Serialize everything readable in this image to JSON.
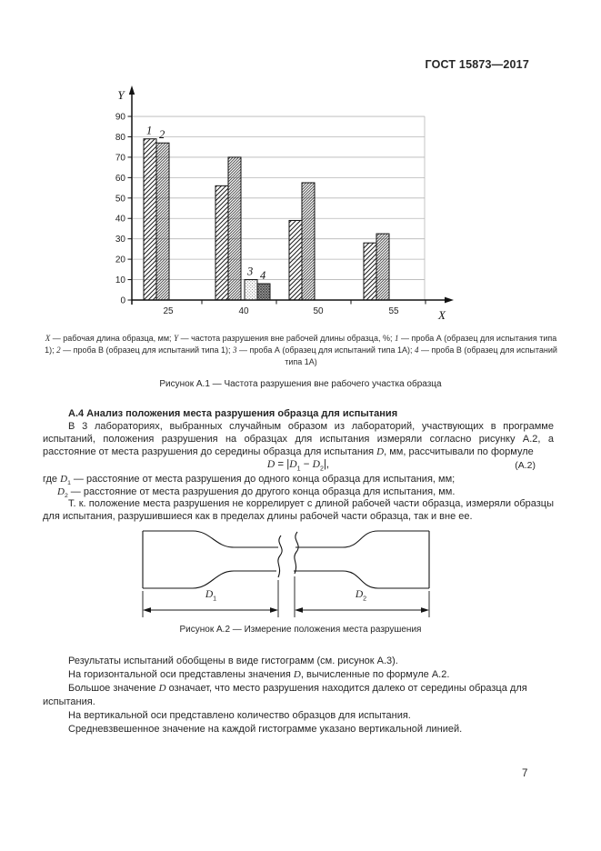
{
  "page": {
    "header": "ГОСТ 15873—2017",
    "page_number": "7"
  },
  "chart_data": {
    "type": "bar",
    "title": "",
    "x_axis_label": "X",
    "y_axis_label": "Y",
    "categories": [
      "25",
      "40",
      "50",
      "55"
    ],
    "y_ticks": [
      0,
      10,
      20,
      30,
      40,
      50,
      60,
      70,
      80,
      90
    ],
    "ylim": [
      0,
      95
    ],
    "grid": true,
    "legend_position": "none",
    "series": [
      {
        "name": "1",
        "pattern": "hatch-wide",
        "values": [
          79,
          56,
          39,
          28
        ]
      },
      {
        "name": "2",
        "pattern": "hatch-dense",
        "values": [
          77,
          70,
          57.5,
          32.5
        ]
      },
      {
        "name": "3",
        "pattern": "dots",
        "values": [
          null,
          10,
          null,
          null
        ]
      },
      {
        "name": "4",
        "pattern": "crosshatch-dark",
        "values": [
          null,
          8,
          null,
          null
        ]
      }
    ],
    "curve_labels": [
      {
        "text": "1",
        "series": 0,
        "category": 0
      },
      {
        "text": "2",
        "series": 1,
        "category": 0
      },
      {
        "text": "3",
        "series": 2,
        "category": 1
      },
      {
        "text": "4",
        "series": 3,
        "category": 1
      }
    ]
  },
  "figure_a1": {
    "legend": "*X* — рабочая длина образца, мм; *Y* — частота разрушения вне рабочей длины образца, %; *1* — проба А (образец для испытания типа 1); *2* — проба В (образец для испытаний типа 1); *3* — проба А (образец для испытаний типа 1А); *4* — проба В (образец для испытаний типа 1А)",
    "caption": "Рисунок А.1 — Частота разрушения вне рабочего участка образца"
  },
  "section_a4": {
    "heading": "А.4  Анализ положения места разрушения образца для испытания",
    "paragraph1": "В 3 лабораториях, выбранных случайным образом из лабораторий, участвующих в программе испытаний, положения разрушения на образцах для испытания измеряли согласно рисунку А.2, а расстояние от места разрушения до середины образца для испытания *D*, мм, рассчитывали по формуле",
    "formula": "*D* = |*D*~1~ − *D*~2~|,",
    "formula_number": "(А.2)",
    "where_items": [
      "где *D*~1~ — расстояние от места разрушения до одного конца образца для испытания, мм;",
      "*D*~2~ — расстояние от места разрушения до другого конца образца для испытания, мм."
    ],
    "paragraph2": "Т. к. положение места разрушения не коррелирует с длиной рабочей части образца, измеряли образцы для испытания, разрушившиеся как в пределах длины рабочей части образца, так и вне ее."
  },
  "figure_a2": {
    "dim1": "*D*~1~",
    "dim2": "*D*~2~",
    "caption": "Рисунок А.2 — Измерение положения места разрушения"
  },
  "results": {
    "paragraphs": [
      "Результаты испытаний обобщены в виде гистограмм (см. рисунок А.3).",
      "На горизонтальной оси представлены значения *D*, вычисленные по формуле А.2.",
      "Большое значение *D* означает, что место разрушения находится далеко от середины образца для испытания.",
      "На вертикальной оси представлено количество образцов для испытания.",
      "Средневзвешенное значение на каждой гистограмме указано вертикальной линией."
    ]
  },
  "colors": {
    "ink": "#121212",
    "grid": "#b6b6b6"
  }
}
